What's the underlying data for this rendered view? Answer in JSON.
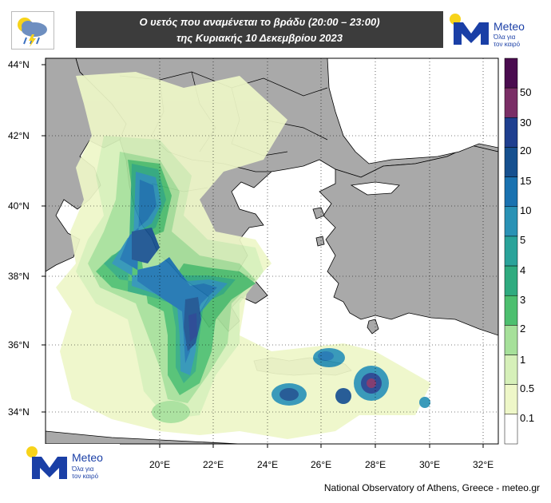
{
  "header": {
    "title_line1": "Ο υετός που αναμένεται το βράδυ (20:00 – 23:00)",
    "title_line2": "της Κυριακής 10 Δεκεμβρίου 2023"
  },
  "logos": {
    "meteo_name": "Meteo",
    "meteo_tagline_1": "Όλα για",
    "meteo_tagline_2": "τον καιρό"
  },
  "map": {
    "lat_labels": [
      "44°N",
      "42°N",
      "40°N",
      "38°N",
      "36°N",
      "34°N"
    ],
    "lon_labels": [
      "20°E",
      "22°E",
      "24°E",
      "26°E",
      "28°E",
      "30°E",
      "32°E"
    ]
  },
  "legend": {
    "labels": [
      "50",
      "30",
      "20",
      "15",
      "10",
      "5",
      "4",
      "3",
      "2",
      "1",
      "0.5",
      "0.1"
    ],
    "colors": [
      "#4a0c4f",
      "#7a2e66",
      "#1f3f8f",
      "#16508f",
      "#1a72b0",
      "#2a92b5",
      "#2aa39a",
      "#2fab7f",
      "#4dbf6f",
      "#a6e09a",
      "#d6f0b9",
      "#eef7c8",
      "#ffffff"
    ]
  },
  "footer": {
    "credit": "National Observatory of Athens, Greece - meteo.gr"
  },
  "colors": {
    "land": "#a9a9a9",
    "sea": "#ffffff",
    "header_bg": "#3c3c3c",
    "brand_blue": "#1a3fa6",
    "brand_yellow": "#f7d31a"
  }
}
